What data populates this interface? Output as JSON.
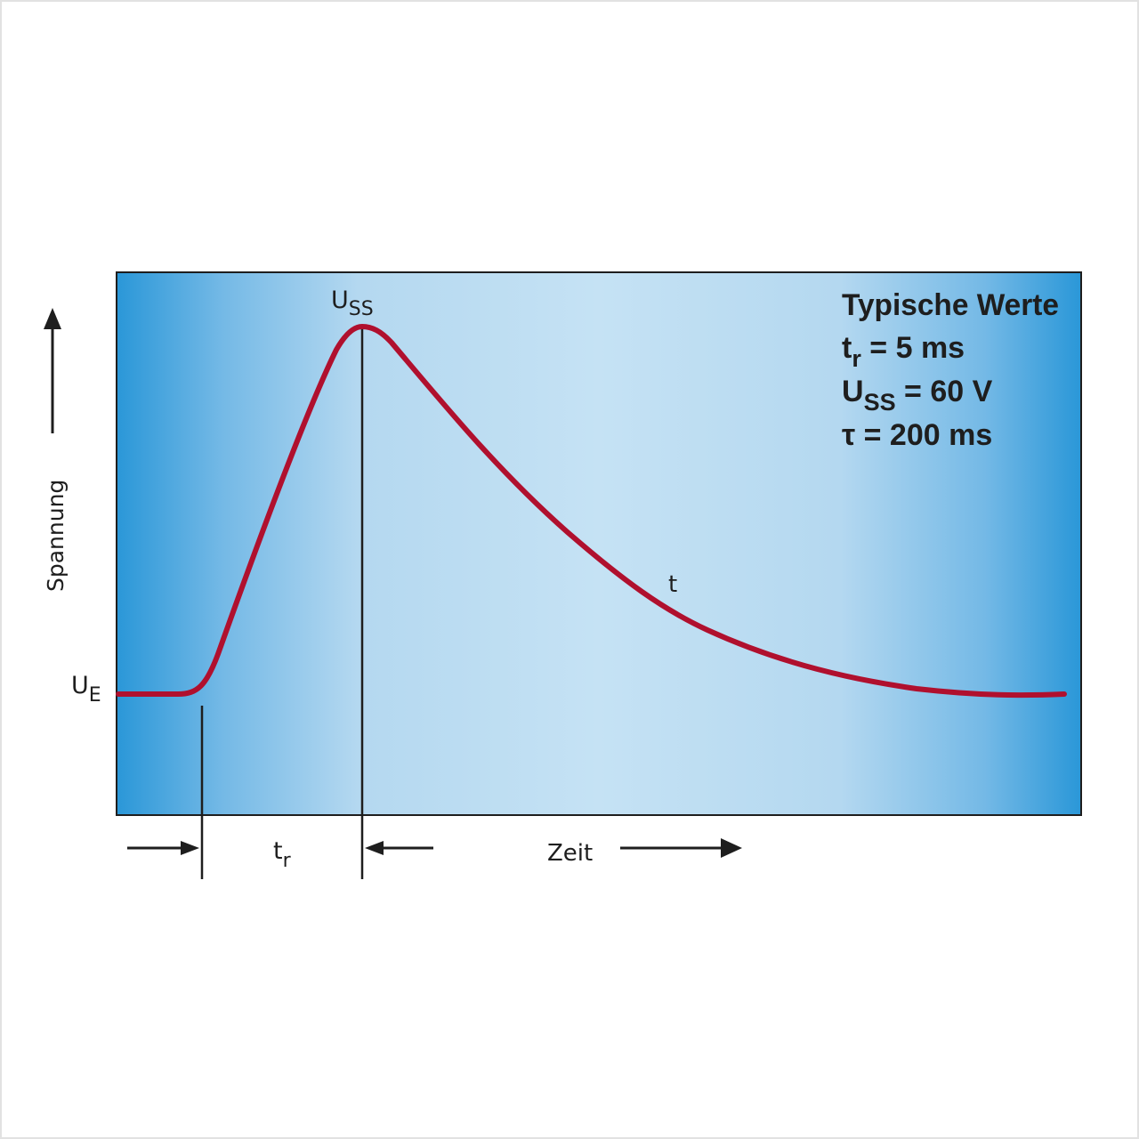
{
  "diagram": {
    "y_axis_label": "Spannung",
    "x_axis_label": "Zeit",
    "level_label": {
      "main": "U",
      "sub": "E"
    },
    "peak_label": {
      "main": "U",
      "sub": "SS"
    },
    "curve_label": "t",
    "rise_label": {
      "main": "t",
      "sub": "r"
    },
    "box": {
      "title": "Typische Werte",
      "rise": {
        "main": "t",
        "sub": "r",
        "rest": " = 5 ms"
      },
      "peak": {
        "main": "U",
        "sub": "SS",
        "rest": " = 60 V"
      },
      "tau": {
        "main": "τ",
        "rest": " = 200 ms"
      }
    },
    "colors": {
      "curve": "#b0102e",
      "background_edge": "#2a97d8",
      "background_center": "#c5e2f4",
      "lines": "#1e1e1e"
    }
  }
}
